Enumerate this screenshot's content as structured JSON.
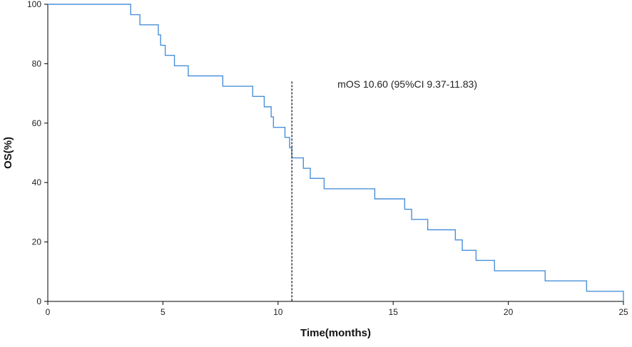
{
  "chart_data": {
    "type": "line",
    "step": true,
    "xlabel": "Time(months)",
    "ylabel": "OS(%)",
    "xlim": [
      0,
      25
    ],
    "ylim": [
      0,
      100
    ],
    "x_ticks": [
      "0",
      "5",
      "10",
      "15",
      "20",
      "25"
    ],
    "y_ticks": [
      "0",
      "20",
      "40",
      "60",
      "80",
      "100"
    ],
    "grid": false,
    "line_color": "#4a90d9",
    "series": [
      {
        "x": [
          0,
          3.6,
          4.0,
          4.8,
          4.9,
          5.1,
          5.5,
          6.1,
          7.6,
          8.9,
          9.4,
          9.7,
          9.8,
          10.3,
          10.5,
          10.6,
          11.1,
          11.4,
          12.0,
          14.2,
          15.5,
          15.8,
          16.5,
          17.7,
          18.0,
          18.6,
          19.4,
          21.6,
          23.4,
          25.0
        ],
        "y": [
          100,
          96.5,
          93.1,
          89.7,
          86.2,
          82.8,
          79.3,
          75.9,
          72.4,
          69.0,
          65.5,
          62.1,
          58.6,
          55.2,
          51.7,
          48.3,
          44.8,
          41.4,
          37.9,
          34.5,
          31.0,
          27.6,
          24.1,
          20.7,
          17.2,
          13.8,
          10.3,
          6.9,
          3.4,
          0
        ]
      }
    ],
    "median_line": {
      "x": 10.6,
      "y_top": 74
    },
    "annotations": [
      {
        "text": "mOS 10.60 (95%CI 9.37-11.83)",
        "x": 10.6,
        "y": 72
      }
    ]
  }
}
